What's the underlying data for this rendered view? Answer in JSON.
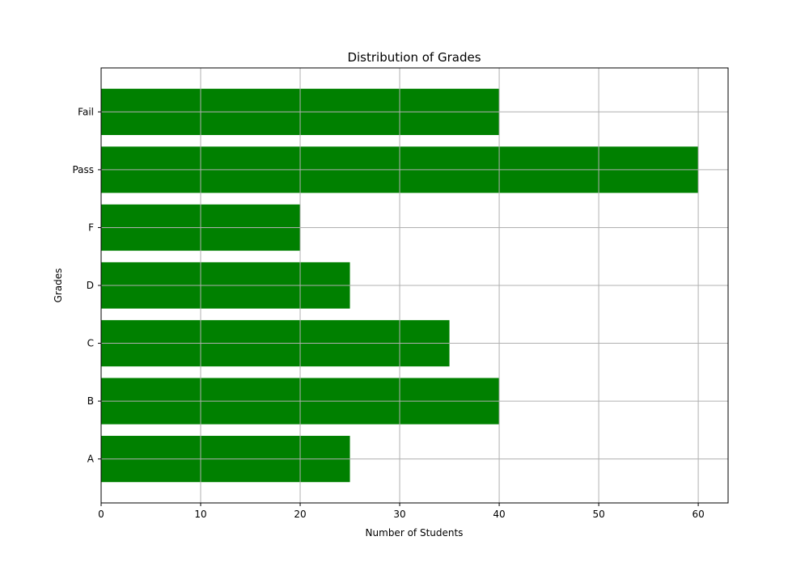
{
  "chart_data": {
    "type": "bar",
    "orientation": "horizontal",
    "title": "Distribution of Grades",
    "xlabel": "Number of Students",
    "ylabel": "Grades",
    "categories": [
      "A",
      "B",
      "C",
      "D",
      "F",
      "Pass",
      "Fail"
    ],
    "values": [
      25,
      40,
      35,
      25,
      20,
      60,
      40
    ],
    "xlim": [
      0,
      63
    ],
    "xticks": [
      0,
      10,
      20,
      30,
      40,
      50,
      60
    ],
    "grid": true,
    "colors": {
      "bar": "#008000",
      "grid": "#b0b0b0",
      "axis": "#000000"
    }
  }
}
